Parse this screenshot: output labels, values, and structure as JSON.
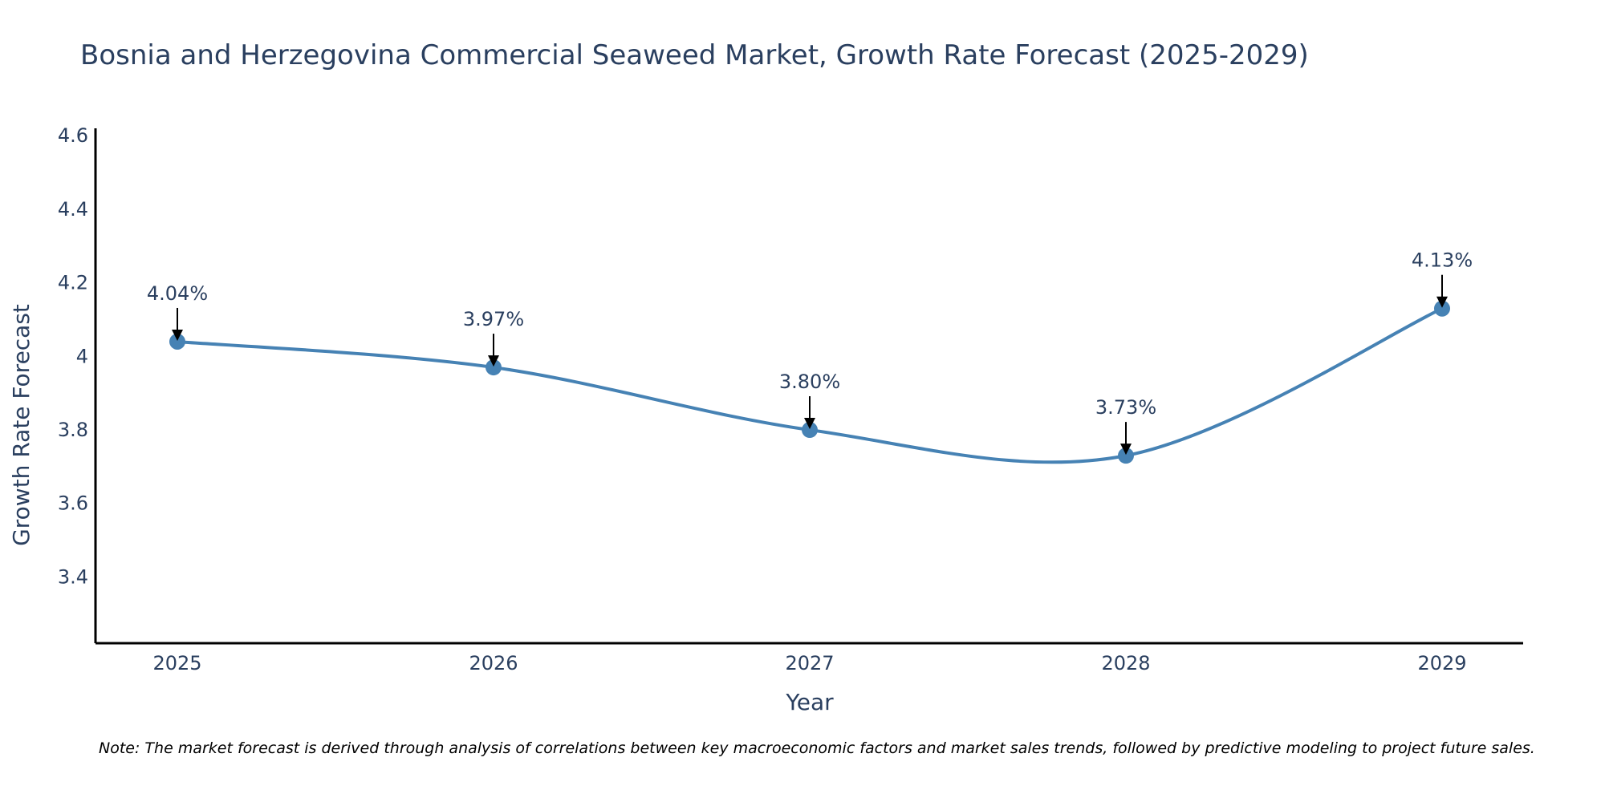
{
  "chart_data": {
    "type": "line",
    "title": "Bosnia and Herzegovina Commercial Seaweed Market, Growth Rate Forecast (2025-2029)",
    "xlabel": "Year",
    "ylabel": "Growth Rate Forecast",
    "categories": [
      "2025",
      "2026",
      "2027",
      "2028",
      "2029"
    ],
    "series": [
      {
        "name": "Growth Rate Forecast",
        "values": [
          4.04,
          3.97,
          3.8,
          3.73,
          4.13
        ],
        "labels": [
          "4.04%",
          "3.97%",
          "3.80%",
          "3.73%",
          "4.13%"
        ]
      }
    ],
    "ylim": [
      3.22,
      4.62
    ],
    "yticks": [
      3.4,
      3.6,
      3.8,
      4,
      4.2,
      4.4,
      4.6
    ],
    "ytick_labels": [
      "3.4",
      "3.6",
      "3.8",
      "4",
      "4.2",
      "4.4",
      "4.6"
    ],
    "grid": false,
    "line_shape": "spline",
    "line_color": "#4682b4",
    "marker_color": "#4682b4",
    "arrow_color": "#000000",
    "note": "Note: The market forecast is derived through analysis of correlations between key macroeconomic factors and market sales trends, followed by predictive modeling to project future sales."
  }
}
